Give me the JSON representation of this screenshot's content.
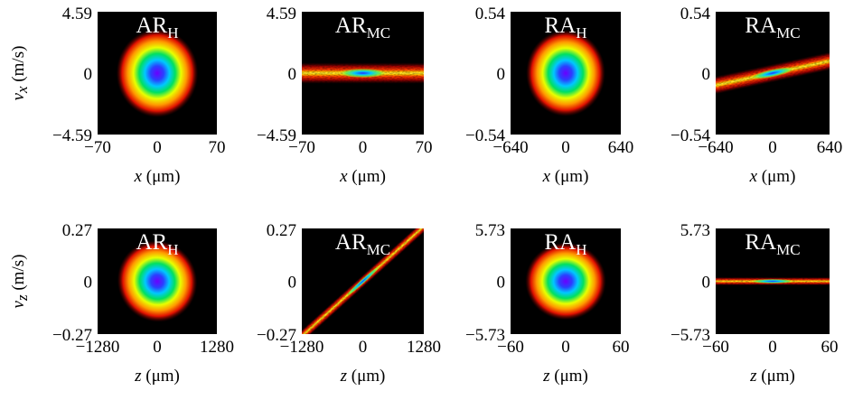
{
  "chart_data": [
    {
      "type": "heatmap",
      "title": "AR",
      "title_sub": "H",
      "x_ticks": [
        "−70",
        "0",
        "70"
      ],
      "xlim": [
        -70,
        70
      ],
      "y_ticks": [
        "−4.59",
        "0",
        "4.59"
      ],
      "ylim": [
        -4.59,
        4.59
      ],
      "xlabel": {
        "var": "x",
        "unit": "(μm)"
      },
      "ylabel": {
        "var": "v",
        "sub": "x",
        "unit": "(m/s)"
      },
      "blob": {
        "shape": "ellipse",
        "x_width": 48,
        "y_width": 3.3,
        "tilt_deg": 0
      }
    },
    {
      "type": "heatmap",
      "title": "AR",
      "title_sub": "MC",
      "x_ticks": [
        "−70",
        "0",
        "70"
      ],
      "xlim": [
        -70,
        70
      ],
      "y_ticks": [
        "−4.59",
        "0",
        "4.59"
      ],
      "ylim": [
        -4.59,
        4.59
      ],
      "xlabel": {
        "var": "x",
        "unit": "(μm)"
      },
      "ylabel": null,
      "blob": {
        "shape": "band",
        "tilt_deg": 0,
        "band_height": 1.6
      }
    },
    {
      "type": "heatmap",
      "title": "RA",
      "title_sub": "H",
      "x_ticks": [
        "−640",
        "0",
        "640"
      ],
      "xlim": [
        -640,
        640
      ],
      "y_ticks": [
        "−0.54",
        "0",
        "0.54"
      ],
      "ylim": [
        -0.54,
        0.54
      ],
      "xlabel": {
        "var": "x",
        "unit": "(μm)"
      },
      "ylabel": null,
      "blob": {
        "shape": "ellipse",
        "x_width": 460,
        "y_width": 0.38,
        "tilt_deg": 0
      }
    },
    {
      "type": "heatmap",
      "title": "RA",
      "title_sub": "MC",
      "x_ticks": [
        "−640",
        "0",
        "640"
      ],
      "xlim": [
        -640,
        640
      ],
      "y_ticks": [
        "−0.54",
        "0",
        "0.54"
      ],
      "ylim": [
        -0.54,
        0.54
      ],
      "xlabel": {
        "var": "x",
        "unit": "(μm)"
      },
      "ylabel": null,
      "blob": {
        "shape": "band",
        "tilt_deg": -12,
        "band_height": 0.16
      }
    },
    {
      "type": "heatmap",
      "title": "AR",
      "title_sub": "H",
      "x_ticks": [
        "−1280",
        "0",
        "1280"
      ],
      "xlim": [
        -1280,
        1280
      ],
      "y_ticks": [
        "−0.27",
        "0",
        "0.27"
      ],
      "ylim": [
        -0.27,
        0.27
      ],
      "xlabel": {
        "var": "z",
        "unit": "(μm)"
      },
      "ylabel": {
        "var": "v",
        "sub": "z",
        "unit": "(m/s)"
      },
      "blob": {
        "shape": "ellipse",
        "x_width": 850,
        "y_width": 0.21,
        "tilt_deg": -28
      }
    },
    {
      "type": "heatmap",
      "title": "AR",
      "title_sub": "MC",
      "x_ticks": [
        "−1280",
        "0",
        "1280"
      ],
      "xlim": [
        -1280,
        1280
      ],
      "y_ticks": [
        "−0.27",
        "0",
        "0.27"
      ],
      "ylim": [
        -0.27,
        0.27
      ],
      "xlabel": {
        "var": "z",
        "unit": "(μm)"
      },
      "ylabel": null,
      "blob": {
        "shape": "band",
        "tilt_deg": -42,
        "band_height": 0.05
      }
    },
    {
      "type": "heatmap",
      "title": "RA",
      "title_sub": "H",
      "x_ticks": [
        "−60",
        "0",
        "60"
      ],
      "xlim": [
        -60,
        60
      ],
      "y_ticks": [
        "−5.73",
        "0",
        "5.73"
      ],
      "ylim": [
        -5.73,
        5.73
      ],
      "xlabel": {
        "var": "z",
        "unit": "(μm)"
      },
      "ylabel": null,
      "blob": {
        "shape": "ellipse",
        "x_width": 44,
        "y_width": 4.2,
        "tilt_deg": 0
      }
    },
    {
      "type": "heatmap",
      "title": "RA",
      "title_sub": "MC",
      "x_ticks": [
        "−60",
        "0",
        "60"
      ],
      "xlim": [
        -60,
        60
      ],
      "y_ticks": [
        "−5.73",
        "0",
        "5.73"
      ],
      "ylim": [
        -5.73,
        5.73
      ],
      "xlabel": {
        "var": "z",
        "unit": "(μm)"
      },
      "ylabel": null,
      "blob": {
        "shape": "band",
        "tilt_deg": 0,
        "band_height": 0.9
      }
    }
  ]
}
